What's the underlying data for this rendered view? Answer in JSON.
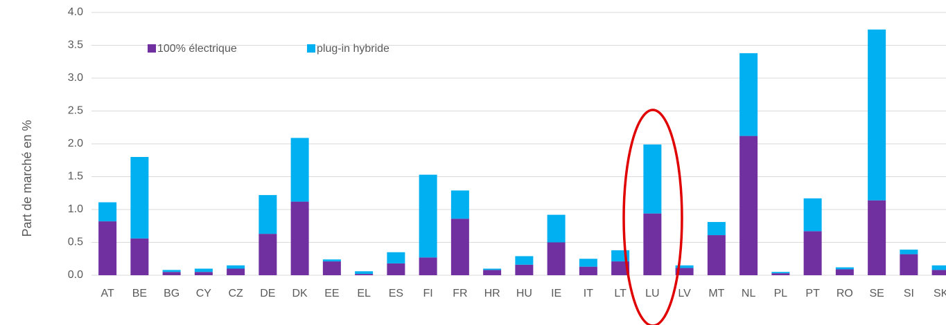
{
  "chart_data": {
    "type": "bar",
    "stacked": true,
    "y_label": "Part de marché en %",
    "categories": [
      "AT",
      "BE",
      "BG",
      "CY",
      "CZ",
      "DE",
      "DK",
      "EE",
      "EL",
      "ES",
      "FI",
      "FR",
      "HR",
      "HU",
      "IE",
      "IT",
      "LT",
      "LU",
      "LV",
      "MT",
      "NL",
      "PL",
      "PT",
      "RO",
      "SE",
      "SI",
      "SK"
    ],
    "series": [
      {
        "name": "100% électrique",
        "color": "#7030a0",
        "values": [
          0.82,
          0.56,
          0.05,
          0.05,
          0.1,
          0.63,
          1.12,
          0.21,
          0.02,
          0.18,
          0.27,
          0.86,
          0.08,
          0.16,
          0.5,
          0.13,
          0.21,
          0.94,
          0.11,
          0.61,
          2.12,
          0.03,
          0.67,
          0.09,
          1.14,
          0.32,
          0.08
        ]
      },
      {
        "name": "plug-in hybride",
        "color": "#00b0f0",
        "values": [
          0.29,
          1.24,
          0.03,
          0.05,
          0.05,
          0.59,
          0.97,
          0.03,
          0.04,
          0.17,
          1.26,
          0.43,
          0.02,
          0.13,
          0.42,
          0.12,
          0.17,
          1.05,
          0.04,
          0.2,
          1.26,
          0.02,
          0.5,
          0.03,
          2.6,
          0.07,
          0.07
        ]
      }
    ],
    "ylim": [
      0,
      4
    ],
    "yticks": [
      {
        "value": 0,
        "label": "0.0"
      },
      0.5,
      {
        "value": 1,
        "label": "1.0"
      },
      1.5,
      {
        "value": 2,
        "label": "2.0"
      },
      2.5,
      {
        "value": 3,
        "label": "3.0"
      },
      3.5,
      {
        "value": 4,
        "label": "4.0"
      }
    ],
    "grid": true,
    "legend": "upper left"
  }
}
